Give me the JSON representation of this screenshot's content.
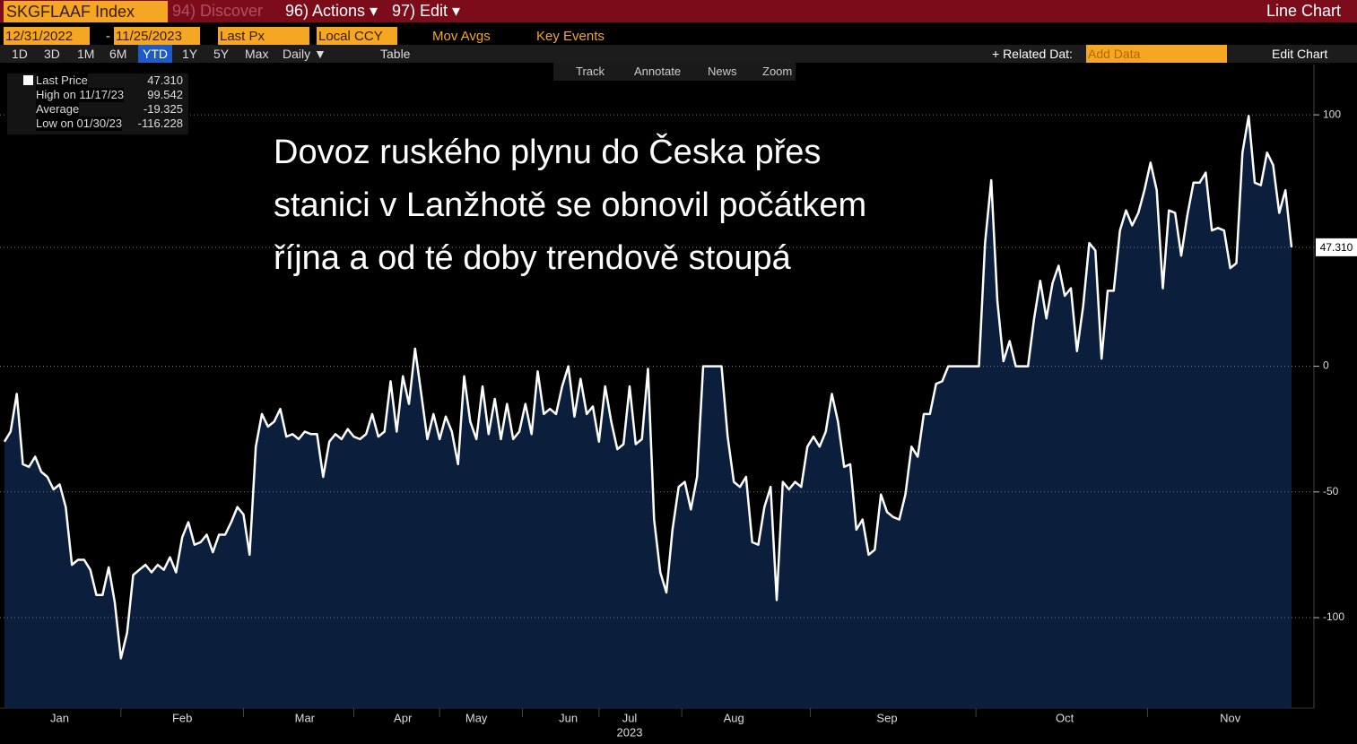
{
  "toolbar": {
    "ticker": "SKGFLAAF Index",
    "discover": "94) Discover",
    "actions": "96) Actions ▾",
    "edit": "97) Edit ▾",
    "view": "Line Chart",
    "start_date": "12/31/2022",
    "date_sep": "-",
    "end_date": "11/25/2023",
    "field": "Last Px",
    "currency": "Local CCY",
    "mov_avgs": "Mov Avgs",
    "key_events": "Key Events",
    "periods": [
      "1D",
      "3D",
      "1M",
      "6M",
      "YTD",
      "1Y",
      "5Y",
      "Max"
    ],
    "frequency": "Daily ▼",
    "table": "Table",
    "related": "+ Related Dat:",
    "add_data": "Add Data",
    "edit_chart": "Edit Chart",
    "chart_tools": [
      "Track",
      "Annotate",
      "News",
      "Zoom"
    ]
  },
  "legend": [
    {
      "label": "Last Price",
      "value": "47.310"
    },
    {
      "label": "High on 11/17/23",
      "value": "99.542"
    },
    {
      "label": "Average",
      "value": "-19.325"
    },
    {
      "label": "Low on 01/30/23",
      "value": "-116.228"
    }
  ],
  "chart_data": {
    "type": "line",
    "color": "#ffffff",
    "fill": "#0b1f3d",
    "annotation": [
      "Dovoz ruského plynu do Česka přes",
      "stanici v Lanžhotě se obnovil počátkem",
      "října a od té doby trendově stoupá"
    ],
    "categories": [
      null,
      null,
      null,
      null,
      null,
      null,
      null,
      null,
      null,
      "Jan",
      null,
      null,
      null,
      null,
      null,
      null,
      null,
      null,
      null,
      null,
      null,
      null,
      null,
      null,
      null,
      null,
      null,
      null,
      null,
      "Feb",
      null,
      null,
      null,
      null,
      null,
      null,
      null,
      null,
      null,
      null,
      null,
      null,
      null,
      null,
      null,
      null,
      null,
      null,
      null,
      "Mar",
      null,
      null,
      null,
      null,
      null,
      null,
      null,
      null,
      null,
      null,
      null,
      null,
      null,
      null,
      null,
      "Apr",
      null,
      null,
      null,
      null,
      null,
      null,
      null,
      null,
      null,
      null,
      null,
      "May",
      null,
      null,
      null,
      null,
      null,
      null,
      null,
      null,
      null,
      null,
      null,
      null,
      null,
      null,
      "Jun",
      null,
      null,
      null,
      null,
      null,
      null,
      null,
      null,
      null,
      "Jul",
      null,
      null,
      null,
      null,
      null,
      null,
      null,
      null,
      null,
      null,
      null,
      null,
      null,
      null,
      null,
      null,
      "Aug",
      null,
      null,
      null,
      null,
      null,
      null,
      null,
      null,
      null,
      null,
      null,
      null,
      null,
      null,
      null,
      null,
      null,
      null,
      null,
      null,
      null,
      null,
      null,
      null,
      "Sep",
      null,
      null,
      null,
      null,
      null,
      null,
      null,
      null,
      null,
      null,
      null,
      null,
      null,
      null,
      null,
      null,
      null,
      null,
      null,
      null,
      null,
      null,
      null,
      null,
      null,
      null,
      null,
      null,
      "Oct",
      null,
      null,
      null,
      null,
      null,
      null,
      null,
      null,
      null,
      null,
      null,
      null,
      null,
      null,
      null,
      null,
      null,
      null,
      null,
      null,
      null,
      null,
      null,
      null,
      null,
      null,
      "Nov",
      null,
      null,
      null,
      null,
      null,
      null,
      null,
      null,
      null,
      null
    ],
    "x_sublabel": "2023",
    "x_sublabel_at": "Jul",
    "values": [
      -30,
      -26,
      -11,
      -39,
      -40,
      -36,
      -42,
      -44,
      -49,
      -47,
      -56,
      -79,
      -77,
      -77,
      -81,
      -91,
      -91,
      -80,
      -94,
      -116.228,
      -106,
      -83,
      -81,
      -79,
      -82,
      -79,
      -81,
      -76,
      -82,
      -68,
      -62,
      -71,
      -70,
      -67,
      -74,
      -67,
      -67,
      -62,
      -56,
      -59,
      -75,
      -32,
      -19,
      -24,
      -22,
      -17,
      -28,
      -27,
      -29,
      -26,
      -27,
      -27,
      -44,
      -30,
      -27,
      -29,
      -25,
      -28,
      -29,
      -27,
      -19,
      -28,
      -26,
      -6,
      -26,
      -4,
      -15,
      7,
      -11,
      -29,
      -19,
      -29,
      -20,
      -26,
      -39,
      -4,
      -22,
      -29,
      -8,
      -27,
      -13,
      -29,
      -15,
      -29,
      -26,
      -15,
      -27,
      -2,
      -19,
      -17,
      -19,
      -8,
      0,
      -20,
      -5,
      -19,
      -16,
      -30,
      -8,
      -22,
      -33,
      -31,
      -8,
      -31,
      -29,
      -1,
      -61,
      -82,
      -90,
      -65,
      -48,
      -46,
      -57,
      -44,
      0,
      0,
      0,
      0,
      -28,
      -46,
      -48,
      -44,
      -70,
      -71,
      -56,
      -48,
      -93,
      -46,
      -49,
      -46,
      -48,
      -32,
      -28,
      -32,
      -26,
      -11,
      -22,
      -40,
      -39,
      -65,
      -61,
      -75,
      -73,
      -51,
      -58,
      -60,
      -61,
      -51,
      -32,
      -36,
      -19,
      -19,
      -7,
      -6,
      0,
      0,
      0,
      0,
      0,
      0,
      49,
      74,
      26,
      2,
      10,
      0,
      0,
      0,
      19,
      34,
      19,
      33,
      40,
      28,
      31,
      6,
      24,
      49,
      46,
      3,
      30,
      30,
      54,
      62,
      56,
      61,
      70,
      81,
      70,
      31,
      62,
      61,
      44,
      60,
      73,
      73,
      77,
      54,
      55,
      54,
      39,
      41,
      85,
      99.542,
      73,
      72,
      85,
      80,
      61,
      70,
      47.31
    ],
    "last_value_label": {
      "value": 47.31,
      "label": "47.310"
    },
    "ylim": [
      -136,
      120
    ],
    "yticks": [
      -100,
      -50,
      0,
      100
    ],
    "grid": true
  }
}
